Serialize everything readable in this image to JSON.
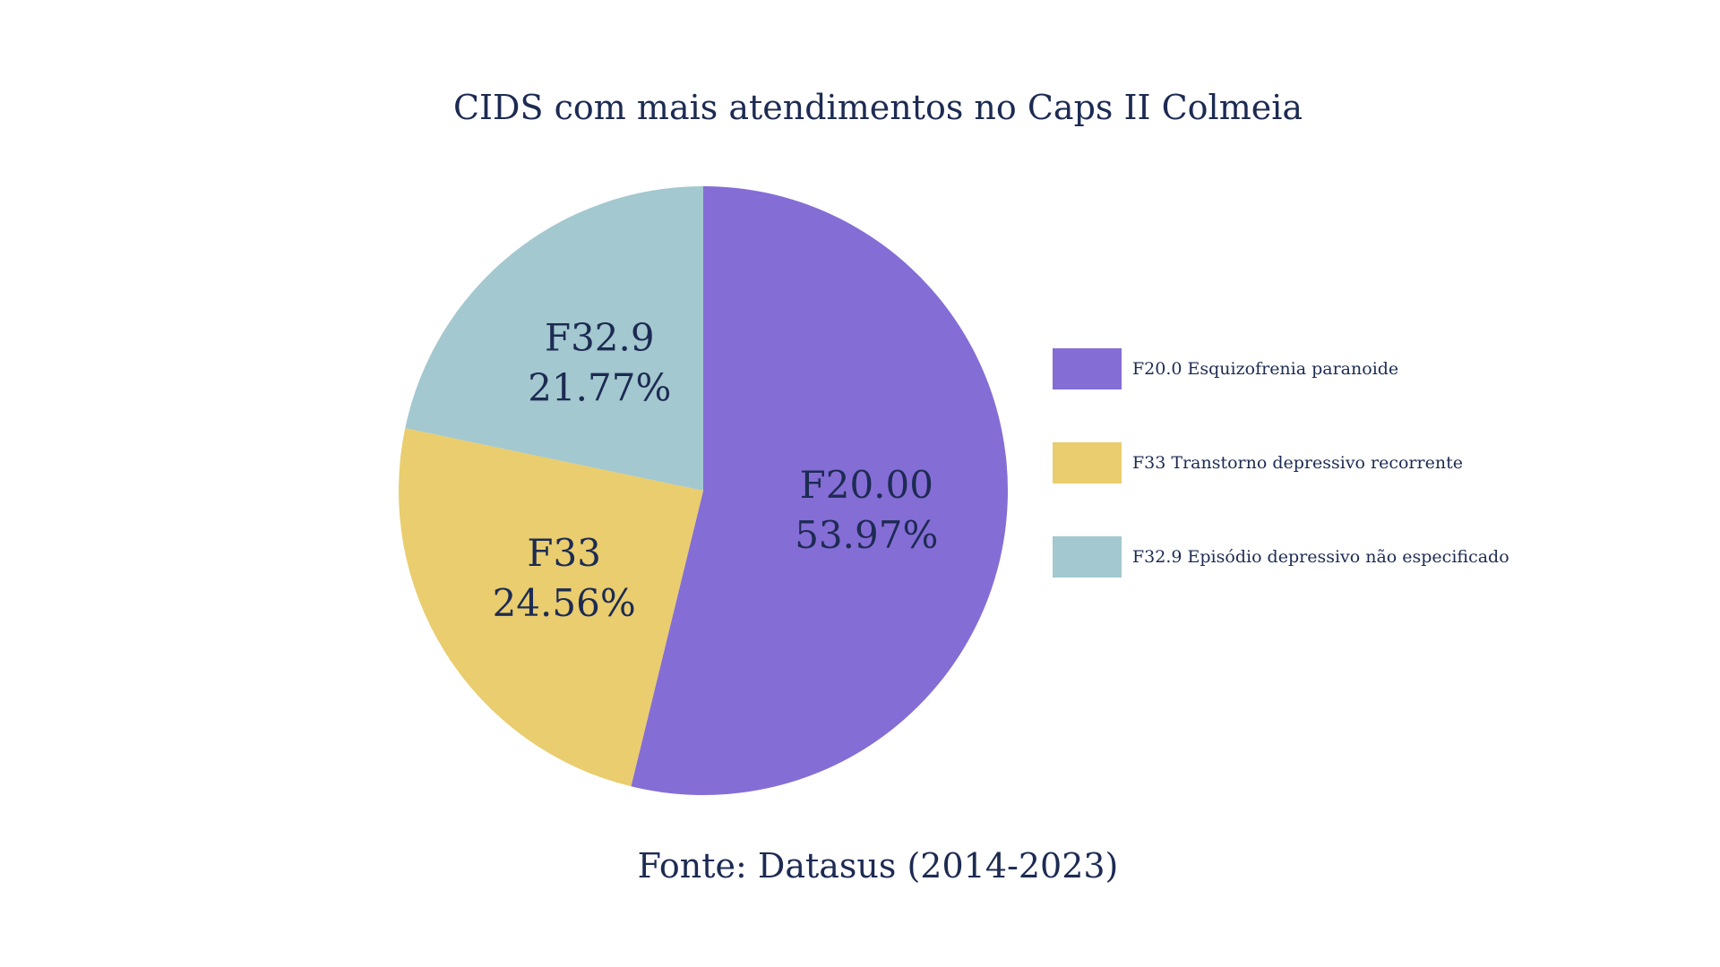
{
  "chart_data": {
    "type": "pie",
    "title": "CIDS com mais atendimentos no Caps II Colmeia",
    "source": "Fonte: Datasus (2014-2023)",
    "legend_position": "right",
    "slices": [
      {
        "key": "f20",
        "slice_label": "F20.00",
        "value_label": "53.97%",
        "value": 53.97,
        "legend": "F20.0 Esquizofrenia paranoide",
        "color": "#856dd6"
      },
      {
        "key": "f33",
        "slice_label": "F33",
        "value_label": "24.56%",
        "value": 24.56,
        "legend": "F33 Transtorno depressivo recorrente",
        "color": "#e9cd6e"
      },
      {
        "key": "f329",
        "slice_label": "F32.9",
        "value_label": "21.77%",
        "value": 21.77,
        "legend": "F32.9 Episódio depressivo não especificado",
        "color": "#a3c8cf"
      }
    ]
  },
  "colors": {
    "text": "#1d2b53",
    "background": "#ffffff"
  }
}
